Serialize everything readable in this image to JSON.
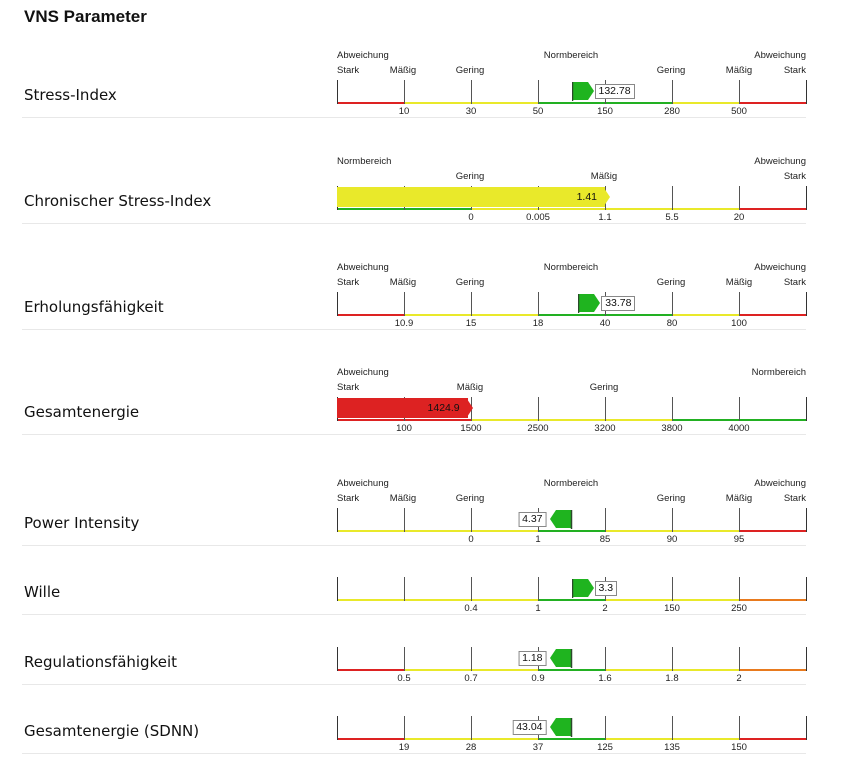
{
  "title": "VNS Parameter",
  "colors": {
    "red": "#dd2222",
    "yellow": "#e9e92a",
    "green": "#22b022",
    "orange": "#e87a1e",
    "marker_green": "#1fb41f",
    "marker_yellow": "#e9e92a",
    "marker_red": "#dd2222"
  },
  "rows": [
    {
      "label": "Stress-Index",
      "headers": [
        [
          "Abweichung",
          "Stark"
        ],
        [
          "Mäßig"
        ],
        [
          "Gering"
        ],
        [
          "Normbereich"
        ],
        [
          "Gering"
        ],
        [
          "Mäßig"
        ],
        [
          "Abweichung",
          "Stark"
        ]
      ],
      "ticks": [
        "10",
        "30",
        "50",
        "150",
        "280",
        "500"
      ],
      "value": "132.78",
      "value_position": 3.5,
      "marker": "right",
      "marker_color": "green",
      "line": [
        "red",
        "yellow",
        "yellow",
        "green",
        "green",
        "yellow",
        "red"
      ]
    },
    {
      "label": "Chronischer Stress-Index",
      "headers": [
        [
          "Normbereich"
        ],
        [
          "Gering"
        ],
        [
          "Mäßig"
        ],
        [
          "Abweichung",
          "Stark"
        ]
      ],
      "ticks": [
        "0",
        "0.005",
        "1.1",
        "5.5",
        "20"
      ],
      "value": "1.41",
      "value_position": 4.0,
      "marker": "right",
      "marker_color": "yellow",
      "fill_color": "yellow",
      "line": [
        "green",
        "green",
        "yellow",
        "yellow",
        "yellow",
        "yellow",
        "red"
      ]
    },
    {
      "label": "Erholungsfähigkeit",
      "headers": [
        [
          "Abweichung",
          "Stark"
        ],
        [
          "Mäßig"
        ],
        [
          "Gering"
        ],
        [
          "Normbereich"
        ],
        [
          "Gering"
        ],
        [
          "Mäßig"
        ],
        [
          "Abweichung",
          "Stark"
        ]
      ],
      "ticks": [
        "10.9",
        "15",
        "18",
        "40",
        "80",
        "100"
      ],
      "value": "33.78",
      "value_position": 3.6,
      "marker": "right",
      "marker_color": "green",
      "line": [
        "red",
        "yellow",
        "yellow",
        "green",
        "green",
        "yellow",
        "red"
      ]
    },
    {
      "label": "Gesamtenergie",
      "headers": [
        [
          "Abweichung",
          "Stark"
        ],
        [
          "Mäßig"
        ],
        [
          "Gering"
        ],
        [
          "Normbereich"
        ]
      ],
      "ticks": [
        "100",
        "1500",
        "2500",
        "3200",
        "3800",
        "4000"
      ],
      "value": "1424.9",
      "value_position": 1.95,
      "marker": "right",
      "marker_color": "red",
      "fill_color": "red",
      "line": [
        "red",
        "red",
        "yellow",
        "yellow",
        "yellow",
        "green",
        "green"
      ]
    },
    {
      "label": "Power Intensity",
      "headers": [
        [
          "Abweichung",
          "Stark"
        ],
        [
          "Mäßig"
        ],
        [
          "Gering"
        ],
        [
          "Normbereich"
        ],
        [
          "Gering"
        ],
        [
          "Mäßig"
        ],
        [
          "Abweichung",
          "Stark"
        ]
      ],
      "ticks": [
        "0",
        "1",
        "85",
        "90",
        "95"
      ],
      "value": "4.37",
      "value_position": 3.5,
      "marker": "left",
      "marker_color": "green",
      "line": [
        "yellow",
        "yellow",
        "yellow",
        "green",
        "yellow",
        "yellow",
        "red"
      ]
    },
    {
      "label": "Wille",
      "headers": [],
      "ticks": [
        "0.4",
        "1",
        "2",
        "150",
        "250"
      ],
      "value": "3.3",
      "value_position": 3.5,
      "marker": "right",
      "marker_color": "green",
      "line": [
        "yellow",
        "yellow",
        "yellow",
        "green",
        "yellow",
        "yellow",
        "orange"
      ]
    },
    {
      "label": "Regulationsfähigkeit",
      "headers": [],
      "ticks": [
        "0.5",
        "0.7",
        "0.9",
        "1.6",
        "1.8",
        "2"
      ],
      "value": "1.18",
      "value_position": 3.5,
      "marker": "left",
      "marker_color": "green",
      "line": [
        "red",
        "yellow",
        "yellow",
        "green",
        "yellow",
        "yellow",
        "orange"
      ]
    },
    {
      "label": "Gesamtenergie (SDNN)",
      "headers": [],
      "ticks": [
        "19",
        "28",
        "37",
        "125",
        "135",
        "150"
      ],
      "value": "43.04",
      "value_position": 3.5,
      "marker": "left",
      "marker_color": "green",
      "line": [
        "red",
        "yellow",
        "yellow",
        "green",
        "yellow",
        "yellow",
        "red"
      ]
    }
  ]
}
